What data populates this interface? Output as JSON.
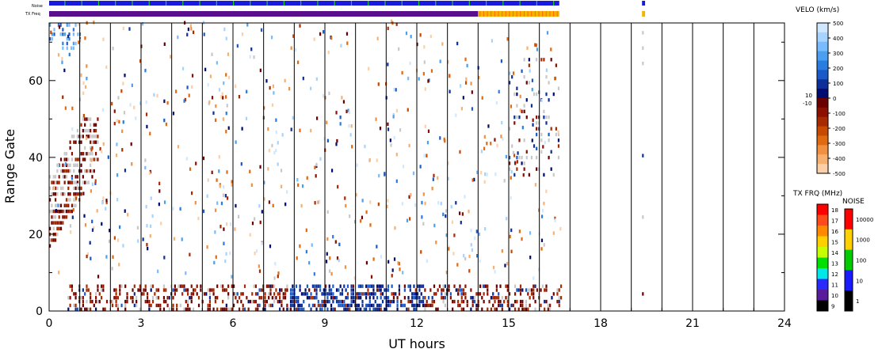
{
  "chart_data": {
    "type": "heatmap",
    "xlabel": "UT hours",
    "ylabel": "Range Gate",
    "xlim": [
      0,
      24
    ],
    "ylim": [
      0,
      75
    ],
    "xticks": [
      0,
      3,
      6,
      9,
      12,
      15,
      18,
      21,
      24
    ],
    "xticks_minor": [
      1,
      2,
      4,
      5,
      7,
      8,
      10,
      11,
      13,
      14,
      16,
      17,
      19,
      20,
      22,
      23
    ],
    "yticks": [
      0,
      20,
      40,
      60
    ],
    "top_bars": {
      "noise_label": "Noise",
      "txfreq_label": "TX Freq",
      "segments_noise": [
        [
          0,
          16.65,
          "#1a1adf"
        ],
        [
          19.35,
          19.45,
          "#1a1adf"
        ]
      ],
      "segments_tx": [
        [
          0,
          14.0,
          "#5a0f8c"
        ],
        [
          14.0,
          16.65,
          "#f5b400"
        ],
        [
          19.35,
          19.45,
          "#f5b400"
        ]
      ]
    },
    "velocity_scale": {
      "title": "VELO (km/s)",
      "ticks": [
        "500",
        "400",
        "300",
        "200",
        "100",
        "0",
        "-100",
        "-200",
        "-300",
        "-400",
        "-500"
      ],
      "inner_labels": [
        "10",
        "-10"
      ],
      "colors": [
        "#cfe8ff",
        "#a6d3ff",
        "#78bcff",
        "#4a9ff0",
        "#2a7de0",
        "#1a5ac8",
        "#0c2f9a",
        "#000c70",
        "#6b0000",
        "#8b1000",
        "#a82a00",
        "#c84a00",
        "#e06a10",
        "#f09040",
        "#f8b070",
        "#fbd0a8"
      ]
    },
    "txfreq_scale": {
      "title": "TX FRQ (MHz)",
      "ticks": [
        "18",
        "17",
        "16",
        "15",
        "14",
        "13",
        "12",
        "11",
        "10",
        "9"
      ],
      "colors": [
        "#ff0000",
        "#ff4a1a",
        "#ff8a00",
        "#ffd000",
        "#c8ff00",
        "#00e000",
        "#00e8e8",
        "#2a2aff",
        "#5a1a9c",
        "#000000"
      ]
    },
    "noise_scale": {
      "title": "NOISE",
      "ticks": [
        "10000",
        "1000",
        "100",
        "10",
        "1"
      ],
      "colors": [
        "#ff0000",
        "#ffd000",
        "#00cc00",
        "#1a1aff",
        "#000000"
      ]
    },
    "series": [
      {
        "region": "low-gates-mixed",
        "x": [
          0.6,
          16.7
        ],
        "gates": [
          0,
          6
        ],
        "values": "dense mix of -300 to 300"
      },
      {
        "region": "low-gates-positive",
        "x": [
          8.0,
          12.0
        ],
        "gates": [
          0,
          7
        ],
        "values": "dense 100 to 300 (blue)"
      },
      {
        "region": "early-gates-negative",
        "x": [
          0.0,
          1.6
        ],
        "gates": [
          15,
          50
        ],
        "values": "-100 with ground scatter"
      },
      {
        "region": "early-top-positive",
        "x": [
          0.0,
          1.0
        ],
        "gates": [
          68,
          75
        ],
        "values": "300 to 500"
      },
      {
        "region": "scattered",
        "x": [
          0.0,
          16.7
        ],
        "gates": [
          8,
          75
        ],
        "values": "sparse isolated echoes"
      },
      {
        "region": "late-cluster",
        "x": [
          15.0,
          16.6
        ],
        "gates": [
          35,
          65
        ],
        "values": "mixed with ground scatter"
      },
      {
        "region": "isolated-19h",
        "x": [
          19.3,
          19.5
        ],
        "gates": [
          0,
          75
        ],
        "values": "sparse"
      }
    ]
  }
}
